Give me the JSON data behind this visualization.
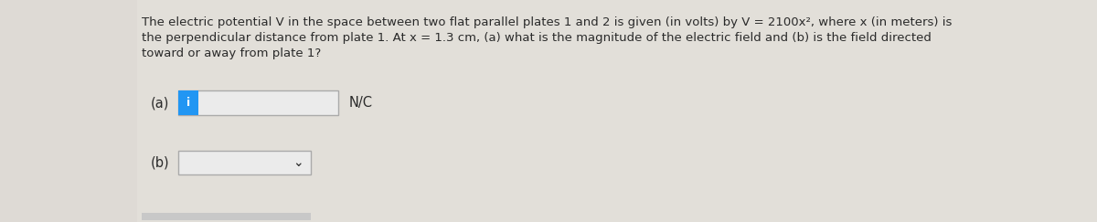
{
  "background_color": "#dedad5",
  "content_bg": "#e8e5e0",
  "text_color": "#2a2a2a",
  "paragraph_line1": "The electric potential V in the space between two flat parallel plates 1 and 2 is given (in volts) by V = 2100x², where x (in meters) is",
  "paragraph_line2": "the perpendicular distance from plate 1. At x = 1.3 cm, (a) what is the magnitude of the electric field and (b) is the field directed",
  "paragraph_line3": "toward or away from plate 1?",
  "label_a": "(a)",
  "label_b": "(b)",
  "unit_label": "N/C",
  "input_box_color": "#ebebeb",
  "input_box_border": "#aaaaaa",
  "blue_button_color": "#2196F3",
  "blue_button_text": "i",
  "blue_button_text_color": "#ffffff",
  "bottom_bar_color": "#c8c8c8",
  "font_size_text": 9.5,
  "font_size_label": 10.5
}
